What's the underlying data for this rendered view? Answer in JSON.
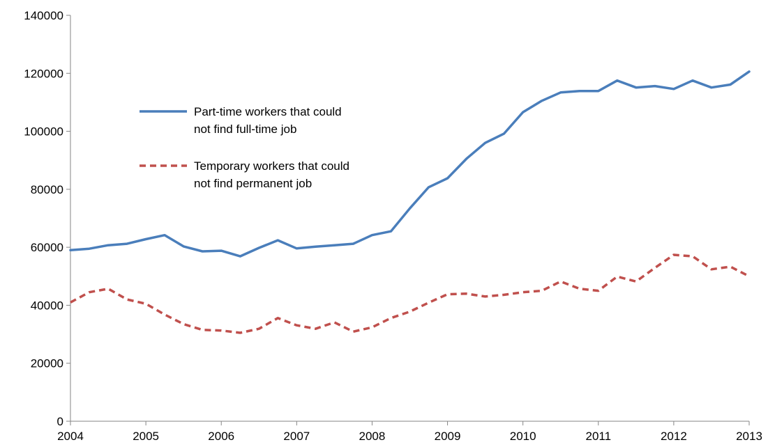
{
  "chart_data": {
    "type": "line",
    "title": "",
    "xlabel": "",
    "ylabel": "",
    "ylim": [
      0,
      140000
    ],
    "y_ticks": [
      "0",
      "20000",
      "40000",
      "60000",
      "80000",
      "100000",
      "120000",
      "140000"
    ],
    "x_ticks": [
      "2004",
      "2005",
      "2006",
      "2007",
      "2008",
      "2009",
      "2010",
      "2011",
      "2012",
      "2013"
    ],
    "grid": false,
    "legend_position": "upper-left (inside plot)",
    "series": [
      {
        "name": "Part-time workers that could not find full-time job",
        "legend_lines": [
          "Part-time workers that could",
          "not find full-time job"
        ],
        "color": "#4a7ebb",
        "style": "solid",
        "x": [
          2004.0,
          2004.25,
          2004.5,
          2004.75,
          2005.0,
          2005.25,
          2005.5,
          2005.75,
          2006.0,
          2006.25,
          2006.5,
          2006.75,
          2007.0,
          2007.25,
          2007.5,
          2007.75,
          2008.0,
          2008.25,
          2008.5,
          2008.75,
          2009.0,
          2009.25,
          2009.5,
          2009.75,
          2010.0,
          2010.25,
          2010.5,
          2010.75,
          2011.0,
          2011.25,
          2011.5,
          2011.75,
          2012.0,
          2012.25,
          2012.5,
          2012.75,
          2013.0
        ],
        "values": [
          59000,
          59500,
          60700,
          61200,
          62800,
          64200,
          60300,
          58600,
          58800,
          56900,
          59800,
          62400,
          59600,
          60200,
          60700,
          61200,
          64200,
          65500,
          73400,
          80700,
          83800,
          90500,
          96000,
          99200,
          106600,
          110500,
          113400,
          113900,
          113900,
          117500,
          115100,
          115600,
          114600,
          117500,
          115100,
          116100,
          120600
        ]
      },
      {
        "name": "Temporary workers that could not find permanent job",
        "legend_lines": [
          "Temporary workers that could",
          "not find permanent job"
        ],
        "color": "#c0504d",
        "style": "dashed",
        "x": [
          2004.0,
          2004.25,
          2004.5,
          2004.75,
          2005.0,
          2005.25,
          2005.5,
          2005.75,
          2006.0,
          2006.25,
          2006.5,
          2006.75,
          2007.0,
          2007.25,
          2007.5,
          2007.75,
          2008.0,
          2008.25,
          2008.5,
          2008.75,
          2009.0,
          2009.25,
          2009.5,
          2009.75,
          2010.0,
          2010.25,
          2010.5,
          2010.75,
          2011.0,
          2011.25,
          2011.5,
          2011.75,
          2012.0,
          2012.25,
          2012.5,
          2012.75,
          2013.0
        ],
        "values": [
          41000,
          44500,
          45700,
          42000,
          40500,
          36800,
          33500,
          31500,
          31300,
          30500,
          31900,
          35600,
          33100,
          31900,
          34100,
          30900,
          32400,
          35600,
          37800,
          40900,
          43800,
          44000,
          43000,
          43600,
          44500,
          45000,
          48200,
          45700,
          45000,
          49900,
          48200,
          52900,
          57400,
          56900,
          52400,
          53300,
          50000
        ]
      }
    ]
  }
}
